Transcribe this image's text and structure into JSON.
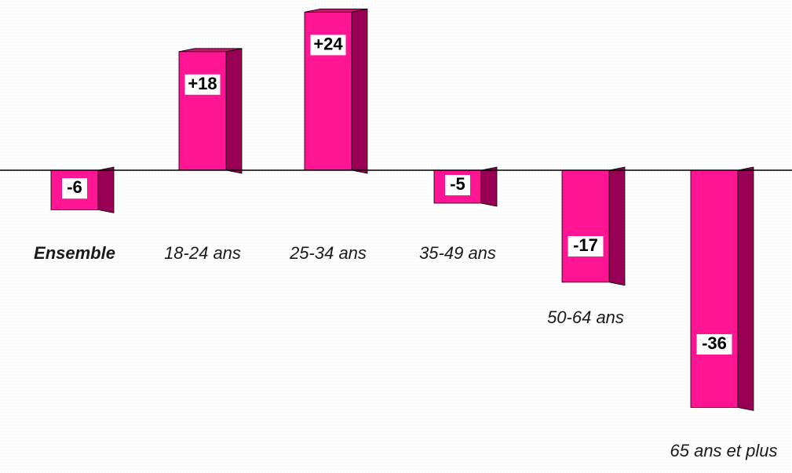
{
  "chart_data": {
    "type": "bar",
    "title": "",
    "xlabel": "",
    "ylabel": "",
    "categories": [
      "Ensemble",
      "18-24 ans",
      "25-34 ans",
      "35-49 ans",
      "50-64 ans",
      "65 ans et plus"
    ],
    "values": [
      -6,
      18,
      24,
      -5,
      -17,
      -36
    ],
    "value_labels": [
      "-6",
      "+18",
      "+24",
      "-5",
      "-17",
      "-36"
    ],
    "ylim": [
      -36,
      24
    ],
    "grid": false,
    "legend": "none",
    "style": "3d-bars",
    "colors": {
      "bar_front": "#ff1493",
      "bar_side": "#990055",
      "bar_top": "#c41a6e",
      "axis": "#000000"
    }
  }
}
